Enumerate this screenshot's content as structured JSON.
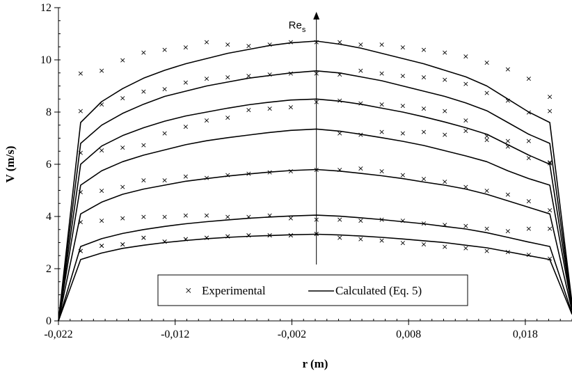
{
  "chart_data": {
    "type": "line",
    "xlabel": "r (m)",
    "ylabel": "V (m/s)",
    "xlim": [
      -0.022,
      0.022
    ],
    "ylim": [
      0,
      12
    ],
    "x_ticks": [
      -0.022,
      -0.012,
      -0.002,
      0.008,
      0.018
    ],
    "x_tick_labels": [
      "-0,022",
      "-0,012",
      "-0,002",
      "0,008",
      "0,018"
    ],
    "y_ticks": [
      0,
      2,
      4,
      6,
      8,
      10,
      12
    ],
    "y_tick_labels": [
      "0",
      "2",
      "4",
      "6",
      "8",
      "10",
      "12"
    ],
    "grid": false,
    "legend": {
      "placement": "bottom-center",
      "experimental_label": "Experimental",
      "calculated_label": "Calculated (Eq. 5)"
    },
    "annotation": {
      "text": "Re",
      "subscript": "s"
    },
    "calculated_x": [
      -0.022,
      -0.0201,
      -0.0183,
      -0.0165,
      -0.0147,
      -0.0129,
      -0.0111,
      -0.0093,
      -0.0075,
      -0.0057,
      -0.0039,
      -0.0021,
      0.0001,
      0.0021,
      0.0039,
      0.0057,
      0.0075,
      0.0093,
      0.0111,
      0.0129,
      0.0147,
      0.0165,
      0.0183,
      0.0201,
      0.022
    ],
    "calculated_series": [
      {
        "values": [
          0,
          7.6,
          8.4,
          8.9,
          9.3,
          9.6,
          9.85,
          10.05,
          10.25,
          10.4,
          10.55,
          10.65,
          10.72,
          10.6,
          10.45,
          10.25,
          10.05,
          9.85,
          9.6,
          9.35,
          9.0,
          8.5,
          8.0,
          7.6,
          0.7
        ]
      },
      {
        "values": [
          0,
          6.8,
          7.5,
          7.95,
          8.3,
          8.6,
          8.8,
          9.0,
          9.15,
          9.3,
          9.4,
          9.5,
          9.58,
          9.5,
          9.35,
          9.2,
          9.0,
          8.8,
          8.6,
          8.35,
          8.05,
          7.6,
          7.15,
          6.8,
          0.6
        ]
      },
      {
        "values": [
          0,
          6.0,
          6.7,
          7.1,
          7.4,
          7.65,
          7.85,
          8.0,
          8.15,
          8.28,
          8.38,
          8.46,
          8.5,
          8.42,
          8.3,
          8.15,
          8.0,
          7.82,
          7.62,
          7.4,
          7.15,
          6.75,
          6.35,
          6.0,
          0.55
        ]
      },
      {
        "values": [
          0,
          5.2,
          5.75,
          6.1,
          6.35,
          6.55,
          6.75,
          6.9,
          7.02,
          7.12,
          7.22,
          7.3,
          7.35,
          7.27,
          7.15,
          7.02,
          6.88,
          6.72,
          6.52,
          6.32,
          6.1,
          5.75,
          5.45,
          5.2,
          0.5
        ]
      },
      {
        "values": [
          0,
          4.1,
          4.55,
          4.85,
          5.05,
          5.2,
          5.35,
          5.45,
          5.55,
          5.63,
          5.7,
          5.76,
          5.8,
          5.74,
          5.65,
          5.56,
          5.45,
          5.32,
          5.2,
          5.05,
          4.85,
          4.6,
          4.35,
          4.1,
          0.4
        ]
      },
      {
        "values": [
          0,
          2.85,
          3.15,
          3.35,
          3.5,
          3.62,
          3.72,
          3.8,
          3.87,
          3.93,
          3.98,
          4.02,
          4.05,
          4.01,
          3.95,
          3.88,
          3.8,
          3.72,
          3.62,
          3.52,
          3.38,
          3.2,
          3.02,
          2.85,
          0.3
        ]
      },
      {
        "values": [
          0,
          2.35,
          2.6,
          2.78,
          2.9,
          3.0,
          3.08,
          3.15,
          3.2,
          3.24,
          3.27,
          3.3,
          3.32,
          3.29,
          3.25,
          3.2,
          3.14,
          3.07,
          3.0,
          2.9,
          2.8,
          2.65,
          2.5,
          2.35,
          0.25
        ]
      }
    ],
    "experimental_x": [
      -0.0201,
      -0.0183,
      -0.0165,
      -0.0147,
      -0.0129,
      -0.0111,
      -0.0093,
      -0.0075,
      -0.0057,
      -0.0039,
      -0.0021,
      0.0001,
      0.0021,
      0.0039,
      0.0057,
      0.0075,
      0.0093,
      0.0111,
      0.0129,
      0.0147,
      0.0165,
      0.0183,
      0.0201
    ],
    "experimental_series": [
      {
        "values": [
          9.5,
          9.6,
          10.0,
          10.3,
          10.4,
          10.5,
          10.7,
          10.6,
          10.55,
          10.6,
          10.7,
          10.7,
          10.7,
          10.6,
          10.6,
          10.5,
          10.4,
          10.3,
          10.15,
          9.9,
          9.65,
          9.3,
          8.6
        ]
      },
      {
        "values": [
          8.05,
          8.3,
          8.55,
          8.8,
          8.9,
          9.15,
          9.3,
          9.35,
          9.4,
          9.45,
          9.5,
          9.5,
          9.45,
          9.6,
          9.5,
          9.4,
          9.35,
          9.25,
          9.1,
          8.75,
          8.45,
          8.0,
          8.05
        ]
      },
      {
        "values": [
          6.45,
          6.55,
          6.65,
          6.75,
          7.2,
          7.45,
          7.7,
          7.8,
          8.1,
          8.15,
          8.2,
          8.4,
          8.45,
          8.35,
          8.3,
          8.25,
          8.15,
          8.05,
          7.7,
          7.1,
          6.9,
          6.9,
          6.1
        ]
      },
      {
        "values": [
          4.95,
          5.0,
          5.15,
          5.4,
          5.4,
          5.55,
          5.5,
          5.6,
          5.65,
          5.7,
          5.75,
          5.8,
          7.2,
          7.15,
          7.25,
          7.2,
          7.25,
          7.15,
          7.3,
          6.95,
          6.7,
          6.25,
          6.05
        ]
      },
      {
        "values": [
          3.8,
          3.85,
          3.95,
          4.0,
          4.0,
          4.05,
          4.05,
          4.0,
          4.0,
          4.05,
          3.95,
          3.9,
          5.8,
          5.85,
          5.75,
          5.6,
          5.45,
          5.35,
          5.15,
          5.0,
          4.85,
          4.6,
          4.25
        ]
      },
      {
        "values": [
          2.7,
          2.9,
          2.95,
          3.2,
          3.05,
          3.15,
          3.2,
          3.25,
          3.3,
          3.3,
          3.3,
          3.35,
          3.9,
          3.85,
          3.9,
          3.85,
          3.75,
          3.7,
          3.65,
          3.55,
          3.45,
          3.55,
          3.55
        ]
      },
      {
        "values": [
          2.7,
          2.9,
          2.95,
          3.2,
          3.05,
          3.15,
          3.2,
          3.25,
          3.3,
          3.3,
          3.3,
          3.35,
          3.2,
          3.15,
          3.1,
          3.0,
          2.95,
          2.85,
          2.8,
          2.7,
          2.65,
          2.55,
          2.4
        ]
      }
    ]
  }
}
